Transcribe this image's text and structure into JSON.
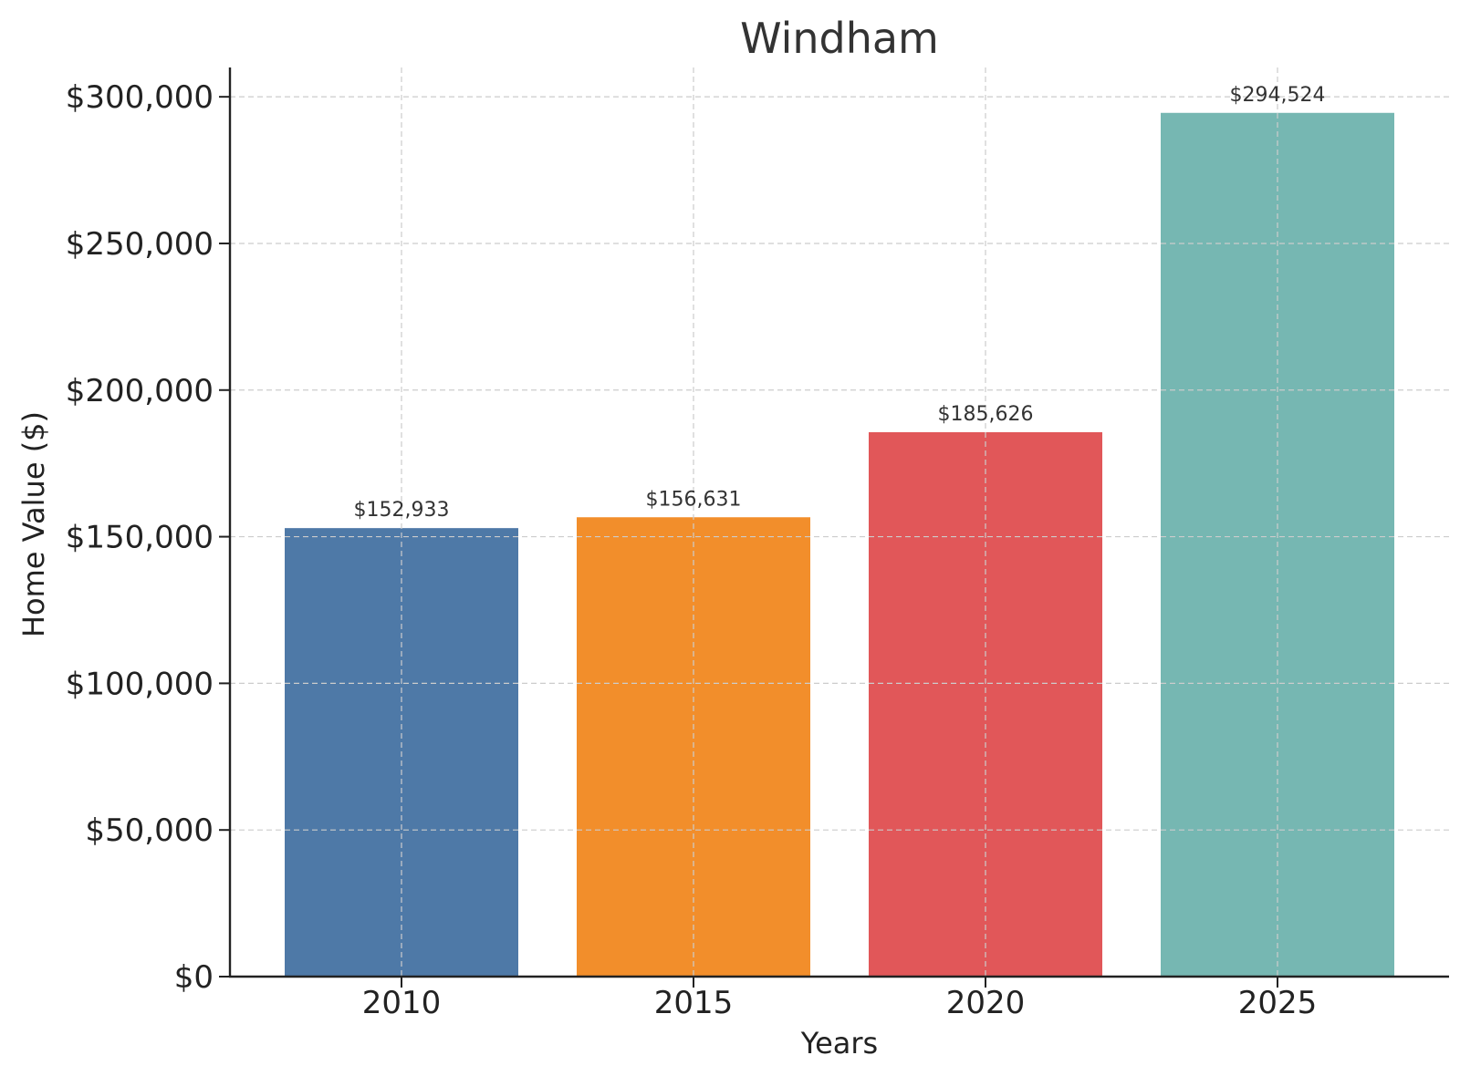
{
  "chart_data": {
    "type": "bar",
    "title": "Windham",
    "xlabel": "Years",
    "ylabel": "Home Value ($)",
    "categories": [
      "2010",
      "2015",
      "2020",
      "2025"
    ],
    "values": [
      152933,
      156631,
      185626,
      294524
    ],
    "data_labels": [
      "$152,933",
      "$156,631",
      "$185,626",
      "$294,524"
    ],
    "colors": [
      "#4e79a7",
      "#f28e2b",
      "#e15759",
      "#76b7b2"
    ],
    "ylim": [
      0,
      310000
    ],
    "yticks": [
      0,
      50000,
      100000,
      150000,
      200000,
      250000,
      300000
    ],
    "ytick_labels": [
      "$0",
      "$50,000",
      "$100,000",
      "$150,000",
      "$200,000",
      "$250,000",
      "$300,000"
    ],
    "grid": true
  }
}
